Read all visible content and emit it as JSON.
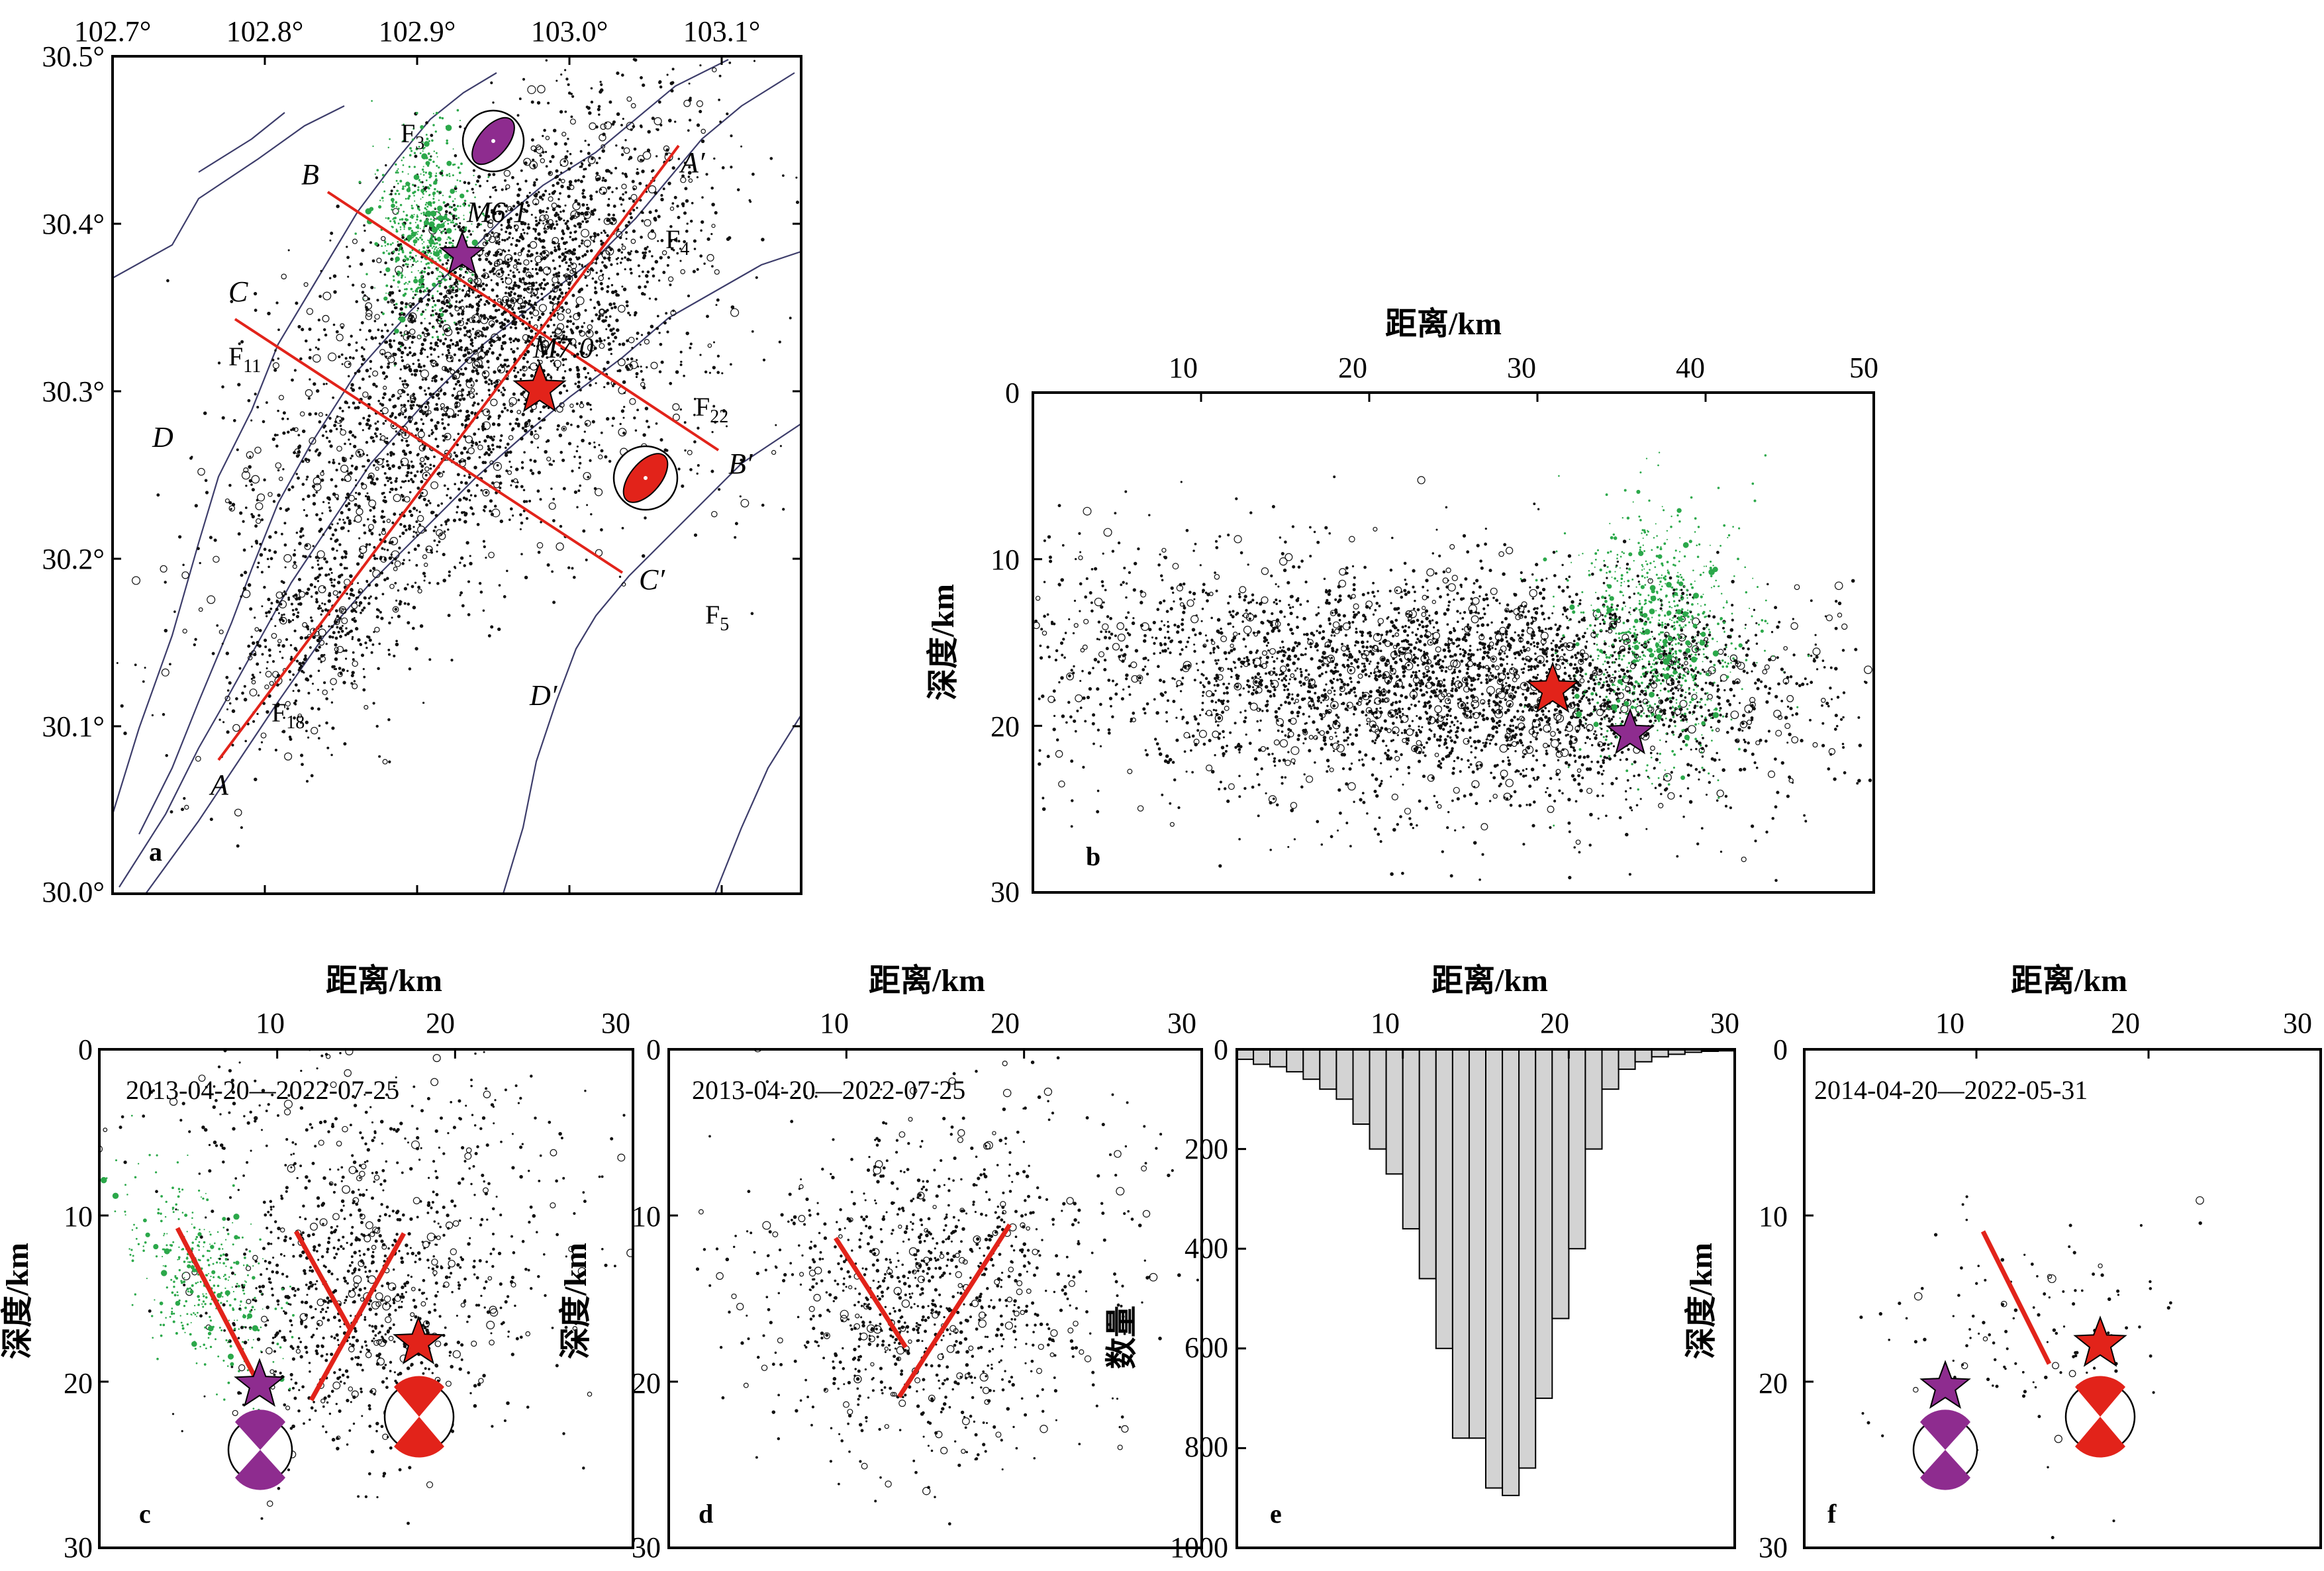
{
  "panel_a": {
    "letter": "a",
    "lon_ticks": [
      "102.7°",
      "102.8°",
      "102.9°",
      "103.0°",
      "103.1°"
    ],
    "lat_ticks": [
      "30.5°",
      "30.4°",
      "30.3°",
      "30.2°",
      "30.1°",
      "30.0°"
    ],
    "labels": {
      "F3": "F",
      "F3s": "3",
      "F4": "F",
      "F4s": "4",
      "F11": "F",
      "F11s": "11",
      "F22": "F",
      "F22s": "22",
      "F5": "F",
      "F5s": "5",
      "F18": "F",
      "F18s": "18",
      "A": "A",
      "A2": "A′",
      "B": "B",
      "B2": "B′",
      "C": "C",
      "C2": "C′",
      "D": "D",
      "D2": "D′",
      "M61": "M6.1",
      "M70": "M7.0"
    }
  },
  "panel_b": {
    "letter": "b",
    "xlabel": "距离/km",
    "ylabel": "深度/km",
    "x_ticks": [
      "10",
      "20",
      "30",
      "40",
      "50"
    ],
    "y_ticks": [
      "0",
      "10",
      "20",
      "30"
    ]
  },
  "panel_c": {
    "letter": "c",
    "xlabel": "距离/km",
    "ylabel": "深度/km",
    "date": "2013-04-20—2022-07-25",
    "x_ticks": [
      "10",
      "20",
      "30"
    ],
    "y_ticks": [
      "0",
      "10",
      "20",
      "30"
    ]
  },
  "panel_d": {
    "letter": "d",
    "xlabel": "距离/km",
    "ylabel": "深度/km",
    "date": "2013-04-20—2022-07-25",
    "x_ticks": [
      "10",
      "20",
      "30"
    ],
    "y_ticks": [
      "0",
      "10",
      "20",
      "30"
    ]
  },
  "panel_e": {
    "letter": "e",
    "xlabel": "距离/km",
    "ylabel": "数量",
    "x_ticks": [
      "10",
      "20",
      "30"
    ],
    "y_ticks": [
      "0",
      "200",
      "400",
      "600",
      "800",
      "1000"
    ]
  },
  "panel_f": {
    "letter": "f",
    "xlabel": "距离/km",
    "ylabel": "深度/km",
    "date": "2014-04-20—2022-05-31",
    "x_ticks": [
      "10",
      "20",
      "30"
    ],
    "y_ticks": [
      "0",
      "10",
      "20",
      "30"
    ]
  },
  "colors": {
    "red": "#e2231a",
    "purple": "#8e2c8f",
    "green": "#2ba84a",
    "grey": "#d3d3d3"
  },
  "chart_data": {
    "type": "bar",
    "xlabel": "距离/km",
    "ylabel": "数量",
    "xlim": [
      0,
      30
    ],
    "ylim": [
      0,
      1000
    ],
    "bin_centers": [
      0.5,
      1.5,
      2.5,
      3.5,
      4.5,
      5.5,
      6.5,
      7.5,
      8.5,
      9.5,
      10.5,
      11.5,
      12.5,
      13.5,
      14.5,
      15.5,
      16.5,
      17.5,
      18.5,
      19.5,
      20.5,
      21.5,
      22.5,
      23.5,
      24.5,
      25.5,
      26.5,
      27.5,
      28.5,
      29.5
    ],
    "values": [
      20,
      30,
      35,
      45,
      60,
      80,
      100,
      150,
      200,
      250,
      360,
      460,
      600,
      780,
      780,
      880,
      895,
      840,
      700,
      540,
      400,
      200,
      80,
      40,
      25,
      15,
      10,
      6,
      4,
      3
    ]
  }
}
